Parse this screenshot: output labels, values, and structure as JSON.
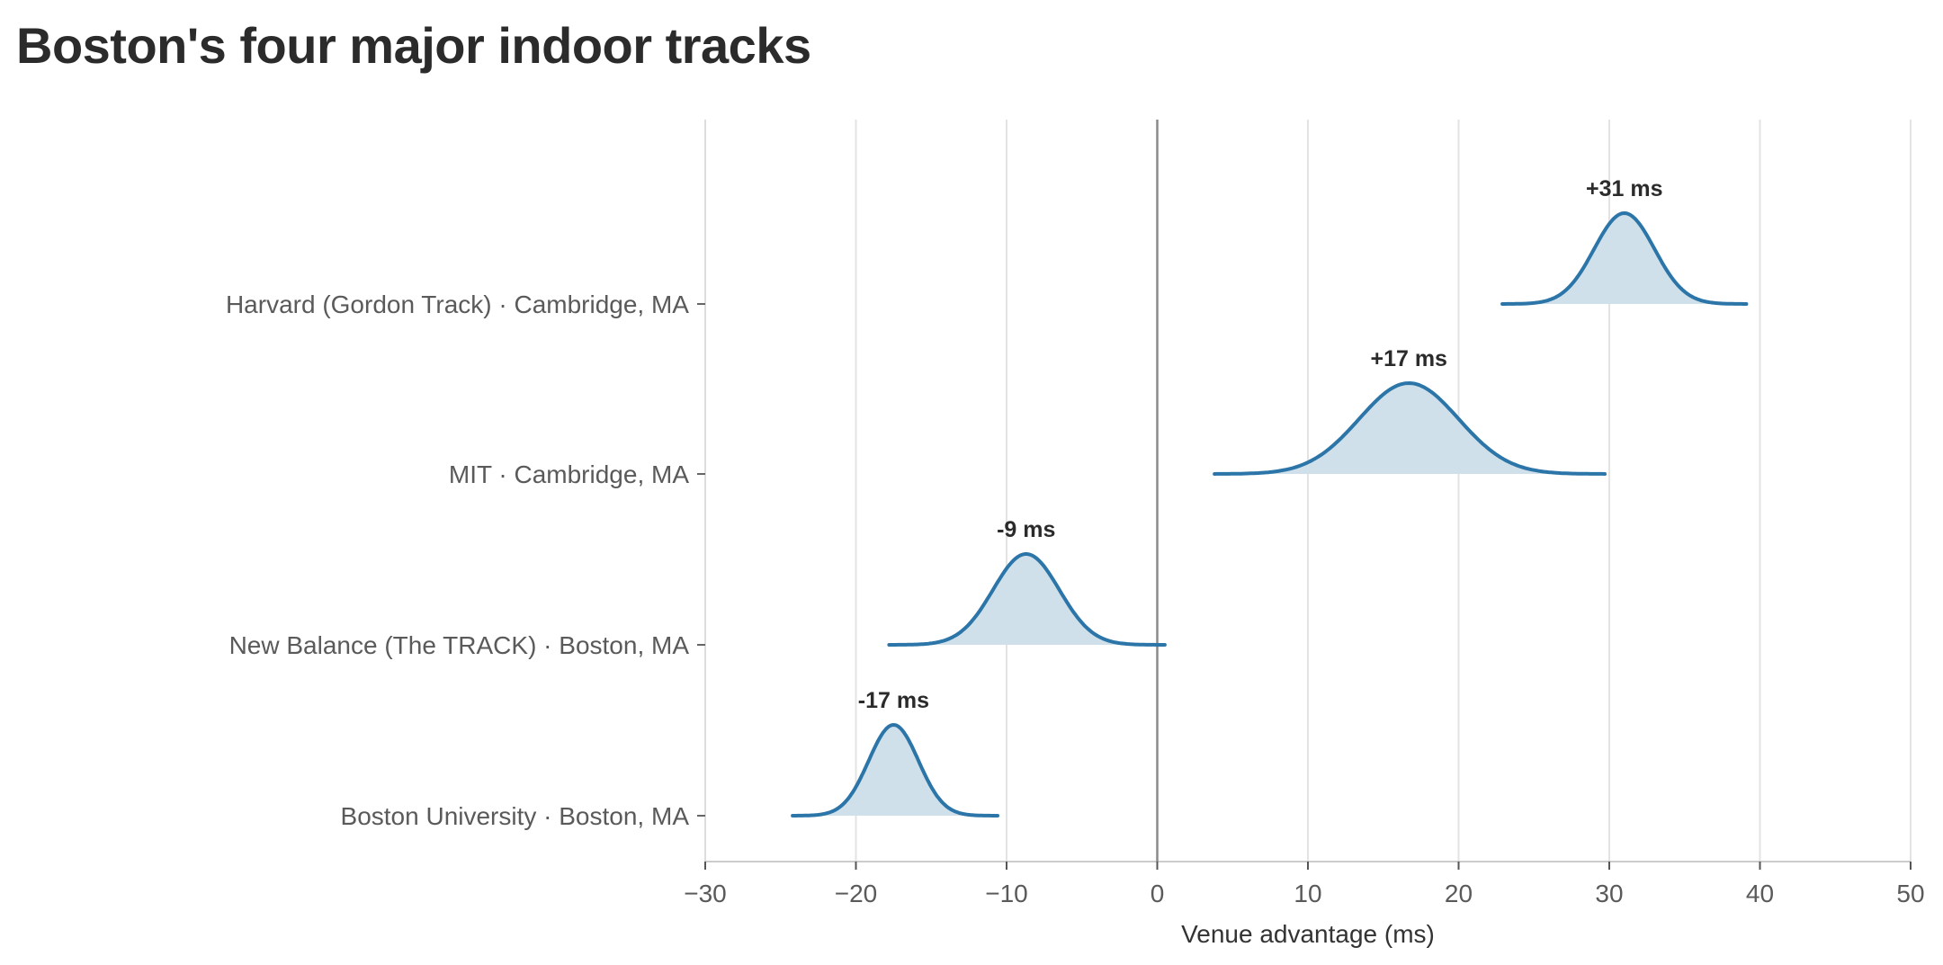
{
  "title": "Boston's four major indoor tracks",
  "chart_data": {
    "type": "area",
    "title": "Boston's four major indoor tracks",
    "xlabel": "Venue advantage (ms)",
    "ylabel": "",
    "xlim": [
      -30,
      50
    ],
    "xticks": [
      -30,
      -20,
      -10,
      0,
      10,
      20,
      30,
      40,
      50
    ],
    "xtick_labels": [
      "−30",
      "−20",
      "−10",
      "0",
      "10",
      "20",
      "30",
      "40",
      "50"
    ],
    "grid": "vertical",
    "reference_line": 0,
    "color": "#2c75a8",
    "fill_color": "#cfe0ea",
    "categories": [
      "Harvard (Gordon Track) · Cambridge, MA",
      "MIT · Cambridge, MA",
      "New Balance (The TRACK) · Boston, MA",
      "Boston University · Boston, MA"
    ],
    "distributions": [
      {
        "mean": 31,
        "sd": 2.0,
        "range": [
          22.9,
          39.1
        ],
        "label": "+31 ms"
      },
      {
        "mean": 16.7,
        "sd": 3.3,
        "range": [
          3.8,
          29.7
        ],
        "label": "+17 ms"
      },
      {
        "mean": -8.7,
        "sd": 2.2,
        "range": [
          -17.8,
          0.5
        ],
        "label": "-9 ms"
      },
      {
        "mean": -17.5,
        "sd": 1.65,
        "range": [
          -24.2,
          -10.6
        ],
        "label": "-17 ms"
      }
    ]
  }
}
